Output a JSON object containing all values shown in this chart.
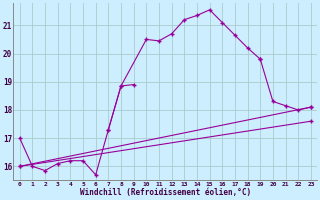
{
  "background_color": "#cceeff",
  "line_color": "#990099",
  "grid_color": "#aacccc",
  "ylabel_ticks": [
    16,
    17,
    18,
    19,
    20,
    21
  ],
  "xlabel_ticks": [
    0,
    1,
    2,
    3,
    4,
    5,
    6,
    7,
    8,
    9,
    10,
    11,
    12,
    13,
    14,
    15,
    16,
    17,
    18,
    19,
    20,
    21,
    22,
    23
  ],
  "xlabel_label": "Windchill (Refroidissement éolien,°C)",
  "xlim": [
    -0.5,
    23.5
  ],
  "ylim": [
    15.5,
    21.8
  ],
  "series": [
    {
      "x": [
        0,
        1,
        2,
        3,
        4,
        5,
        6,
        7,
        8,
        10,
        11,
        12,
        13,
        14,
        15,
        16,
        17,
        18,
        19
      ],
      "y": [
        17.0,
        16.0,
        15.85,
        16.1,
        16.2,
        16.2,
        15.7,
        17.3,
        18.85,
        20.5,
        20.45,
        20.7,
        21.2,
        21.35,
        21.55,
        21.1,
        20.65,
        20.2,
        19.8
      ]
    },
    {
      "x": [
        7,
        8,
        9
      ],
      "y": [
        17.3,
        18.85,
        18.9
      ]
    },
    {
      "x": [
        19,
        20,
        21,
        22,
        23
      ],
      "y": [
        19.8,
        18.3,
        18.15,
        18.0,
        18.1
      ]
    },
    {
      "x": [
        0,
        23
      ],
      "y": [
        16.0,
        18.1
      ]
    },
    {
      "x": [
        0,
        23
      ],
      "y": [
        16.0,
        17.6
      ]
    }
  ]
}
